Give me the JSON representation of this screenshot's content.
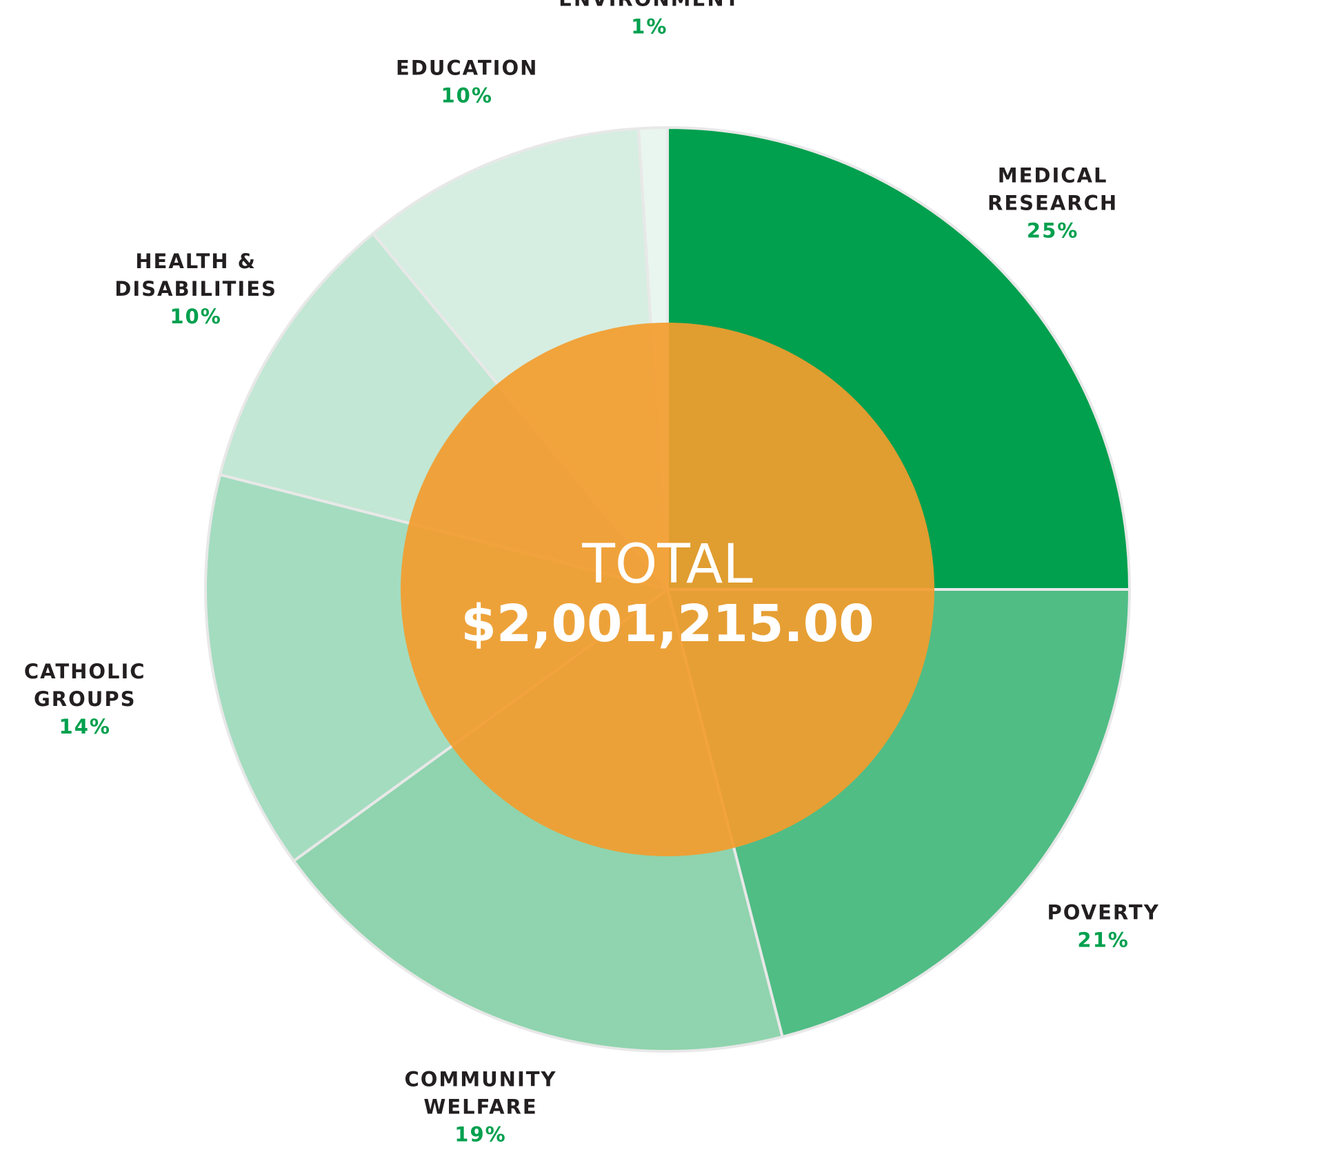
{
  "chart_data": {
    "type": "pie",
    "categories": [
      "MEDICAL RESEARCH",
      "POVERTY",
      "COMMUNITY WELFARE",
      "CATHOLIC GROUPS",
      "HEALTH & DISABILITIES",
      "EDUCATION",
      "ENVIRONMENT"
    ],
    "values": [
      25,
      21,
      19,
      14,
      10,
      10,
      1
    ],
    "slices": [
      {
        "label_lines": [
          "MEDICAL",
          "RESEARCH"
        ],
        "value": 25,
        "percent_label": "25%",
        "color": "#00a04e"
      },
      {
        "label_lines": [
          "POVERTY"
        ],
        "value": 21,
        "percent_label": "21%",
        "color": "#50bd85"
      },
      {
        "label_lines": [
          "COMMUNITY",
          "WELFARE"
        ],
        "value": 19,
        "percent_label": "19%",
        "color": "#8fd4ae"
      },
      {
        "label_lines": [
          "CATHOLIC",
          "GROUPS"
        ],
        "value": 14,
        "percent_label": "14%",
        "color": "#a4dcc0"
      },
      {
        "label_lines": [
          "HEALTH &",
          "DISABILITIES"
        ],
        "value": 10,
        "percent_label": "10%",
        "color": "#c2e7d4"
      },
      {
        "label_lines": [
          "EDUCATION"
        ],
        "value": 10,
        "percent_label": "10%",
        "color": "#d6eee1"
      },
      {
        "label_lines": [
          "ENVIRONMENT"
        ],
        "value": 1,
        "percent_label": "1%",
        "color": "#e9f6ef"
      }
    ],
    "start_direction": "12 o'clock",
    "direction": "clockwise",
    "center": {
      "title": "TOTAL",
      "value": "$2,001,215.00",
      "color": "#f39c2e"
    }
  },
  "colors": {
    "label_text": "#231f20",
    "percent_text": "#00a04e",
    "center_text": "#ffffff",
    "slice_border": "#e8e8e8"
  }
}
